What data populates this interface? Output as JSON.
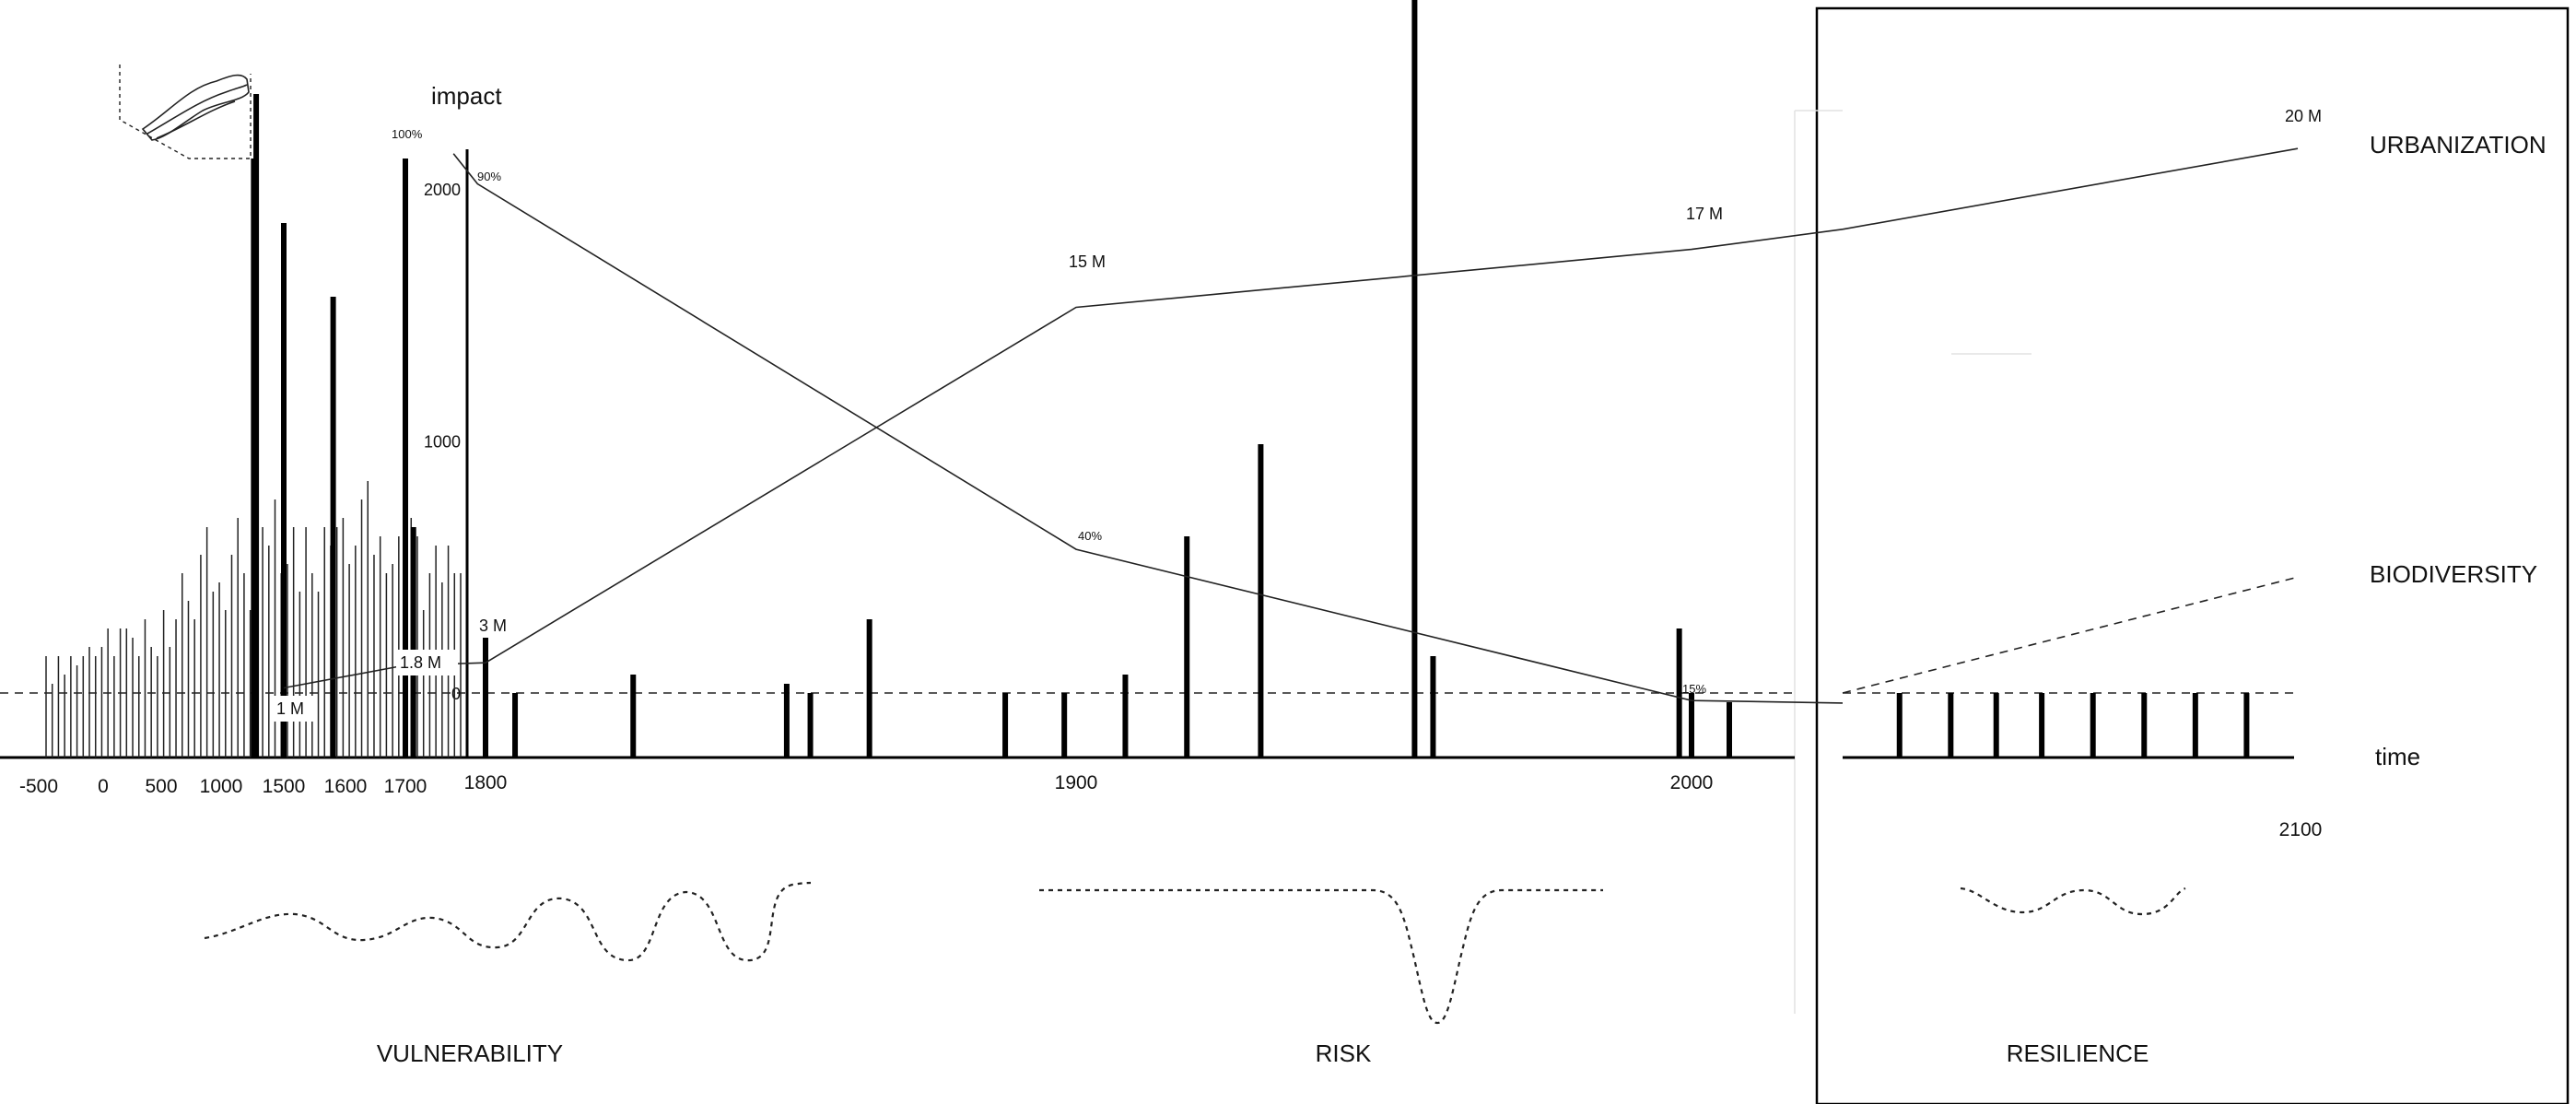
{
  "chart_data": {
    "type": "line",
    "title": "",
    "ylabel": "impact",
    "xlabel": "time",
    "y_ticks": [
      "2000",
      "1000",
      "0"
    ],
    "ylim": [
      0,
      2000
    ],
    "x_ticks_early": [
      "-500",
      "0",
      "500",
      "1000",
      "1500",
      "1600",
      "1700"
    ],
    "x_ticks_main": [
      "1800",
      "1900",
      "2000"
    ],
    "x_tick_future": "2100",
    "series": [
      {
        "name": "URBANIZATION",
        "points": [
          [
            1500,
            20
          ],
          [
            1700,
            110
          ],
          [
            1800,
            120
          ],
          [
            1900,
            1530
          ],
          [
            2000,
            1760
          ],
          [
            2020,
            1840
          ],
          [
            2100,
            2160
          ]
        ],
        "labels": [
          {
            "x": 1500,
            "text": "1 M"
          },
          {
            "x": 1700,
            "text": "1.8 M"
          },
          {
            "x": 1800,
            "text": "3 M"
          },
          {
            "x": 1900,
            "text": "15 M"
          },
          {
            "x": 2000,
            "text": "17 M"
          },
          {
            "x": 2100,
            "text": "20 M"
          }
        ]
      },
      {
        "name": "BIODIVERSITY",
        "points": [
          [
            1760,
            2140
          ],
          [
            1790,
            2020
          ],
          [
            1900,
            570
          ],
          [
            2000,
            -30
          ],
          [
            2020,
            -40
          ]
        ],
        "future_points": [
          [
            2020,
            0
          ],
          [
            2100,
            460
          ]
        ],
        "labels": [
          {
            "x": 1760,
            "text": "100%"
          },
          {
            "x": 1790,
            "text": "90%"
          },
          {
            "x": 1900,
            "text": "40%"
          },
          {
            "x": 2000,
            "text": "15%"
          }
        ]
      }
    ],
    "events_early": {
      "thin_heights": [
        110,
        80,
        110,
        90,
        110,
        100,
        110,
        120,
        110,
        120,
        140,
        110,
        140,
        140,
        130,
        110,
        150,
        120,
        110,
        160,
        120,
        150,
        200,
        170,
        150,
        220,
        250,
        180,
        190,
        160,
        220,
        260,
        200,
        160,
        200,
        250,
        230,
        280,
        200,
        210,
        250,
        180,
        250,
        200,
        180,
        250,
        230,
        250,
        260,
        210,
        230,
        280,
        300,
        220,
        240,
        200,
        210,
        240,
        230,
        260,
        240,
        160,
        200,
        230,
        190,
        230,
        200,
        200
      ],
      "thick": [
        [
          1260,
          650
        ],
        [
          1280,
          720
        ],
        [
          1500,
          580
        ],
        [
          1580,
          500
        ],
        [
          1700,
          650
        ],
        [
          1710,
          250
        ]
      ]
    },
    "events_main": [
      [
        1800,
        130
      ],
      [
        1805,
        70
      ],
      [
        1825,
        90
      ],
      [
        1851,
        80
      ],
      [
        1855,
        70
      ],
      [
        1865,
        150
      ],
      [
        1888,
        70
      ],
      [
        1898,
        70
      ],
      [
        1908,
        90
      ],
      [
        1918,
        240
      ],
      [
        1930,
        340
      ],
      [
        1955,
        1400
      ],
      [
        1958,
        110
      ],
      [
        1998,
        140
      ],
      [
        2000,
        70
      ],
      [
        2005,
        60
      ]
    ],
    "events_future": [
      2030,
      2039,
      2047,
      2055,
      2064,
      2073,
      2082,
      2091
    ],
    "phases": [
      "VULNERABILITY",
      "RISK",
      "RESILIENCE"
    ]
  }
}
